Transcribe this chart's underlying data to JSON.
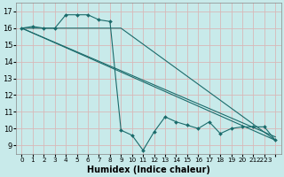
{
  "title": "",
  "xlabel": "Humidex (Indice chaleur)",
  "ylabel": "",
  "background_color": "#c8eaea",
  "grid_color": "#d8b8b8",
  "line_color": "#1a6b6b",
  "xlim": [
    -0.5,
    23.5
  ],
  "ylim": [
    8.5,
    17.5
  ],
  "yticks": [
    9,
    10,
    11,
    12,
    13,
    14,
    15,
    16,
    17
  ],
  "xtick_positions": [
    0,
    1,
    2,
    3,
    4,
    5,
    6,
    7,
    8,
    9,
    10,
    11,
    12,
    13,
    14,
    15,
    16,
    17,
    18,
    19,
    20,
    21,
    22,
    23
  ],
  "xtick_labels": [
    "0",
    "1",
    "2",
    "3",
    "4",
    "5",
    "6",
    "7",
    "8",
    "9",
    "10",
    "11",
    "12",
    "13",
    "14",
    "15",
    "16",
    "17",
    "18",
    "19",
    "20",
    "21",
    "2223",
    ""
  ],
  "main_series": {
    "x": [
      0,
      1,
      2,
      3,
      4,
      5,
      6,
      7,
      8,
      9,
      10,
      11,
      12,
      13,
      14,
      15,
      16,
      17,
      18,
      19,
      20,
      21,
      22,
      23
    ],
    "y": [
      16.0,
      16.1,
      16.0,
      16.0,
      16.8,
      16.8,
      16.8,
      16.5,
      16.4,
      9.9,
      9.6,
      8.7,
      9.8,
      10.7,
      10.4,
      10.2,
      10.0,
      10.4,
      9.7,
      10.0,
      10.1,
      10.1,
      10.1,
      9.3
    ]
  },
  "straight_lines": [
    {
      "x": [
        0,
        23
      ],
      "y": [
        16.0,
        9.3
      ]
    },
    {
      "x": [
        0,
        23
      ],
      "y": [
        16.0,
        9.5
      ]
    },
    {
      "x": [
        0,
        9,
        23
      ],
      "y": [
        16.0,
        16.0,
        9.3
      ]
    }
  ]
}
